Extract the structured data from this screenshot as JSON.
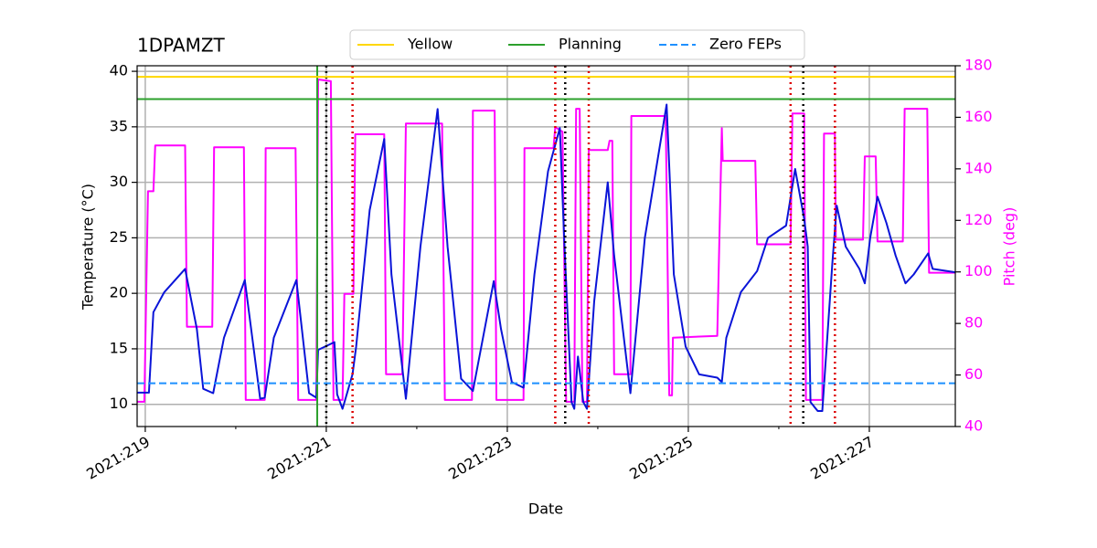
{
  "chart_data": {
    "type": "line",
    "title": "1DPAMZT",
    "xlabel": "Date",
    "ylabel": "Temperature (°C)",
    "y2label": "Pitch (deg)",
    "xlim": [
      218.91,
      227.95
    ],
    "xticks": [
      {
        "value": 219,
        "label": "2021:219"
      },
      {
        "value": 221,
        "label": "2021:221"
      },
      {
        "value": 223,
        "label": "2021:223"
      },
      {
        "value": 225,
        "label": "2021:225"
      },
      {
        "value": 227,
        "label": "2021:227"
      }
    ],
    "xminorticks": [
      220,
      222,
      224,
      226
    ],
    "ylim": [
      8,
      40.5
    ],
    "yticks": [
      10,
      15,
      20,
      25,
      30,
      35,
      40
    ],
    "y2lim": [
      40,
      180
    ],
    "y2ticks": [
      40,
      60,
      80,
      100,
      120,
      140,
      160,
      180
    ],
    "y2color": "#ff00ff",
    "grid": true,
    "legend": "upper center",
    "series": [
      {
        "color": "#0a14d8",
        "x": [
          218.91,
          219.04,
          219.09,
          219.21,
          219.44,
          219.57,
          219.64,
          219.75,
          219.87,
          220.1,
          220.27,
          220.32,
          220.42,
          220.67,
          220.81,
          220.89,
          220.91,
          221.09,
          221.12,
          221.18,
          221.29,
          221.33,
          221.48,
          221.64,
          221.72,
          221.88,
          222.04,
          222.23,
          222.34,
          222.49,
          222.62,
          222.85,
          222.93,
          223.05,
          223.18,
          223.3,
          223.45,
          223.58,
          223.63,
          223.71,
          223.74,
          223.78,
          223.84,
          223.88,
          223.96,
          224.11,
          224.18,
          224.36,
          224.52,
          224.76,
          224.84,
          224.97,
          225.12,
          225.32,
          225.37,
          225.42,
          225.58,
          225.76,
          225.88,
          226.08,
          226.18,
          226.28,
          226.32,
          226.35,
          226.43,
          226.48,
          226.59,
          226.64,
          226.74,
          226.89,
          226.95,
          227.01,
          227.09,
          227.19,
          227.29,
          227.4,
          227.49,
          227.65,
          227.7,
          227.95
        ],
        "values": [
          11.05,
          11.05,
          18.3,
          20.1,
          22.2,
          16.8,
          11.4,
          11.0,
          16.0,
          21.2,
          10.5,
          10.6,
          16.0,
          21.2,
          11.0,
          10.6,
          14.9,
          15.6,
          10.9,
          9.6,
          12.7,
          15.2,
          27.5,
          33.9,
          21.7,
          10.5,
          24.2,
          36.6,
          24.2,
          12.3,
          11.2,
          21.1,
          16.8,
          12.0,
          11.5,
          21.7,
          31.0,
          34.9,
          24.6,
          10.2,
          9.6,
          14.3,
          10.2,
          9.6,
          19.3,
          30.0,
          23.4,
          11.0,
          25.0,
          37.0,
          21.7,
          15.2,
          12.7,
          12.4,
          12.0,
          16.0,
          20.1,
          22.0,
          25.0,
          26.1,
          31.2,
          26.7,
          24.2,
          10.2,
          9.4,
          9.4,
          22.6,
          27.9,
          24.2,
          22.2,
          20.9,
          25.0,
          28.7,
          26.3,
          23.4,
          20.9,
          21.7,
          23.6,
          22.2,
          21.9
        ]
      },
      {
        "color": "#ff00ff",
        "axis": "y2",
        "x": [
          218.91,
          218.99,
          219.03,
          219.09,
          219.11,
          219.44,
          219.46,
          219.74,
          219.76,
          220.09,
          220.11,
          220.32,
          220.33,
          220.66,
          220.69,
          220.89,
          220.91,
          221.05,
          221.08,
          221.18,
          221.2,
          221.3,
          221.32,
          221.64,
          221.66,
          221.84,
          221.88,
          222.28,
          222.31,
          222.61,
          222.62,
          222.86,
          222.88,
          223.18,
          223.19,
          223.51,
          223.53,
          223.61,
          223.65,
          223.74,
          223.76,
          223.8,
          223.83,
          223.88,
          223.9,
          224.11,
          224.13,
          224.16,
          224.18,
          224.36,
          224.37,
          224.75,
          224.79,
          224.82,
          224.83,
          225.32,
          225.37,
          225.38,
          225.74,
          225.76,
          226.13,
          226.15,
          226.28,
          226.3,
          226.48,
          226.5,
          226.62,
          226.63,
          226.93,
          226.95,
          227.07,
          227.09,
          227.37,
          227.39,
          227.64,
          227.66,
          227.95
        ],
        "values": [
          49.6,
          49.6,
          131.3,
          131.3,
          149.1,
          149.1,
          78.7,
          78.7,
          148.4,
          148.4,
          50.3,
          50.3,
          148.0,
          148.0,
          50.3,
          50.3,
          174.7,
          174.0,
          50.3,
          50.3,
          91.5,
          91.5,
          153.4,
          153.4,
          60.3,
          60.3,
          157.6,
          157.6,
          50.3,
          50.3,
          162.6,
          162.6,
          50.3,
          50.3,
          148.0,
          148.0,
          156.2,
          154.4,
          49.6,
          49.6,
          163.3,
          163.3,
          49.6,
          49.6,
          147.3,
          147.3,
          150.9,
          150.9,
          60.3,
          60.3,
          160.5,
          160.5,
          52.1,
          52.1,
          74.5,
          75.2,
          155.8,
          143.1,
          143.1,
          110.7,
          110.7,
          161.5,
          161.5,
          50.3,
          50.3,
          153.7,
          153.7,
          112.5,
          112.5,
          144.8,
          144.8,
          111.8,
          111.8,
          163.3,
          163.3,
          99.7,
          99.7
        ]
      }
    ],
    "hlines": [
      {
        "name": "Yellow",
        "color": "#ffd700",
        "value": 39.5,
        "style": "solid"
      },
      {
        "name": "Planning",
        "color": "#2ca02c",
        "value": 37.5,
        "style": "solid"
      },
      {
        "name": "Zero FEPs",
        "color": "#1e90ff",
        "value": 11.9,
        "style": "dashed"
      }
    ],
    "vlines": [
      {
        "x": 220.9,
        "color": "#2ca02c",
        "style": "solid"
      },
      {
        "x": 221.0,
        "color": "#000000",
        "style": "dotted"
      },
      {
        "x": 223.64,
        "color": "#000000",
        "style": "dotted"
      },
      {
        "x": 226.27,
        "color": "#000000",
        "style": "dotted"
      },
      {
        "x": 221.29,
        "color": "#dd0000",
        "style": "dotted"
      },
      {
        "x": 223.53,
        "color": "#dd0000",
        "style": "dotted"
      },
      {
        "x": 223.9,
        "color": "#dd0000",
        "style": "dotted"
      },
      {
        "x": 226.13,
        "color": "#dd0000",
        "style": "dotted"
      },
      {
        "x": 226.62,
        "color": "#dd0000",
        "style": "dotted"
      }
    ]
  }
}
